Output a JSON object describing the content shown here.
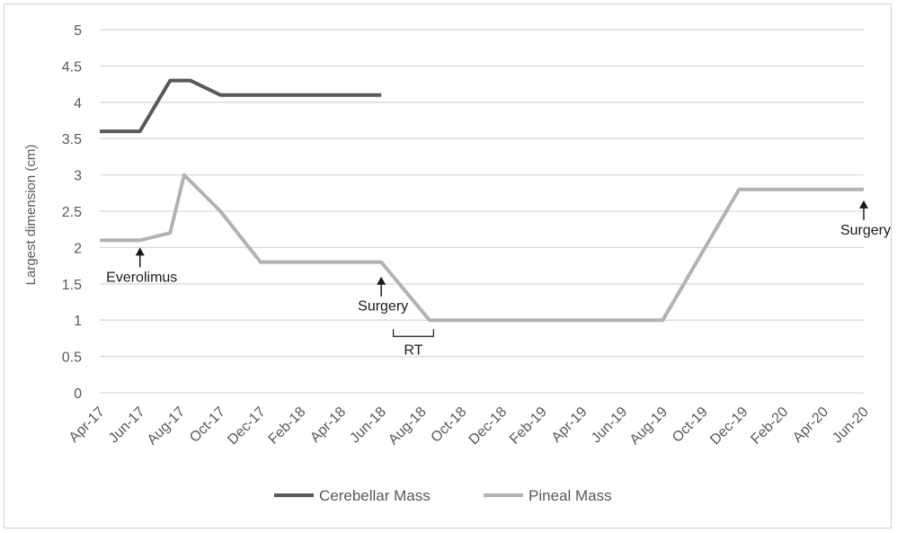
{
  "chart_data": {
    "type": "line",
    "title": "",
    "xlabel": "",
    "ylabel": "Largest dimension (cm)",
    "ylim": [
      0,
      5
    ],
    "yticks": [
      "0",
      "0.5",
      "1",
      "1.5",
      "2",
      "2.5",
      "3",
      "3.5",
      "4",
      "4.5",
      "5"
    ],
    "categories": [
      "Apr-17",
      "Jun-17",
      "Aug-17",
      "Oct-17",
      "Dec-17",
      "Feb-18",
      "Apr-18",
      "Jun-18",
      "Aug-18",
      "Oct-18",
      "Dec-18",
      "Feb-19",
      "Apr-19",
      "Jun-19",
      "Aug-19",
      "Oct-19",
      "Dec-19",
      "Feb-20",
      "Apr-20",
      "Jun-20"
    ],
    "grid": true,
    "legend_position": "bottom",
    "series": [
      {
        "name": "Cerebellar Mass",
        "color": "#595959",
        "points": [
          {
            "t": 0,
            "y": 3.6
          },
          {
            "t": 1,
            "y": 3.6
          },
          {
            "t": 1.75,
            "y": 4.3
          },
          {
            "t": 2.25,
            "y": 4.3
          },
          {
            "t": 3,
            "y": 4.1
          },
          {
            "t": 7,
            "y": 4.1
          }
        ]
      },
      {
        "name": "Pineal Mass",
        "color": "#b2b2b2",
        "points": [
          {
            "t": 0,
            "y": 2.1
          },
          {
            "t": 1,
            "y": 2.1
          },
          {
            "t": 1.75,
            "y": 2.2
          },
          {
            "t": 2.1,
            "y": 3.0
          },
          {
            "t": 3,
            "y": 2.5
          },
          {
            "t": 4,
            "y": 1.8
          },
          {
            "t": 5,
            "y": 1.8
          },
          {
            "t": 6,
            "y": 1.8
          },
          {
            "t": 7,
            "y": 1.8
          },
          {
            "t": 8.2,
            "y": 1.0
          },
          {
            "t": 14,
            "y": 1.0
          },
          {
            "t": 15.9,
            "y": 2.8
          },
          {
            "t": 19,
            "y": 2.8
          }
        ]
      }
    ],
    "annotations": [
      {
        "text": "Everolimus",
        "t": 1,
        "y": 2.0,
        "kind": "arrow"
      },
      {
        "text": "Surgery",
        "t": 7,
        "y": 1.6,
        "kind": "arrow"
      },
      {
        "text": "Surgery",
        "t": 19,
        "y": 2.65,
        "kind": "arrow"
      },
      {
        "text": "RT",
        "t_start": 7.3,
        "t_end": 8.3,
        "y": 0.9,
        "kind": "bracket"
      }
    ]
  }
}
